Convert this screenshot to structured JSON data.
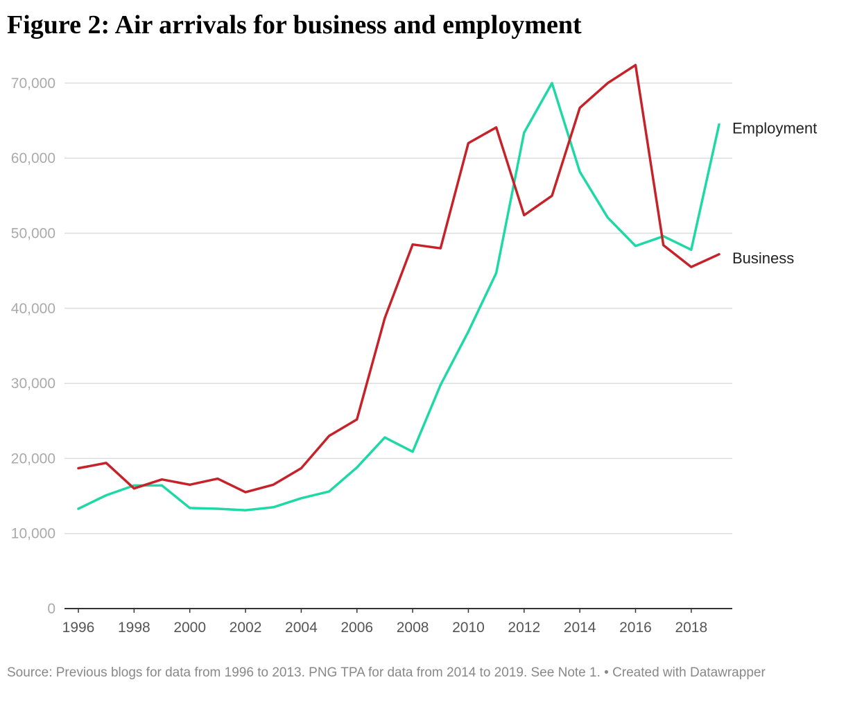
{
  "title": "Figure 2: Air arrivals for business and employment",
  "source_note": "Source: Previous blogs for data from 1996 to 2013. PNG TPA for data from 2014 to 2019. See Note 1. • Created with Datawrapper",
  "chart_data": {
    "type": "line",
    "title": "Figure 2: Air arrivals for business and employment",
    "xlabel": "",
    "ylabel": "",
    "x": [
      1996,
      1997,
      1998,
      1999,
      2000,
      2001,
      2002,
      2003,
      2004,
      2005,
      2006,
      2007,
      2008,
      2009,
      2010,
      2011,
      2012,
      2013,
      2014,
      2015,
      2016,
      2017,
      2018,
      2019
    ],
    "x_ticks": [
      "1996",
      "1998",
      "2000",
      "2002",
      "2004",
      "2006",
      "2008",
      "2010",
      "2012",
      "2014",
      "2016",
      "2018"
    ],
    "y_ticks": [
      "0",
      "10,000",
      "20,000",
      "30,000",
      "40,000",
      "50,000",
      "60,000",
      "70,000"
    ],
    "xlim": [
      1996,
      2019
    ],
    "ylim": [
      0,
      72500
    ],
    "grid": true,
    "legend": "direct labels at line ends",
    "series": [
      {
        "name": "Employment",
        "color": "#1ed8a5",
        "values": [
          13300,
          15100,
          16400,
          16400,
          13400,
          13300,
          13100,
          13500,
          14700,
          15600,
          18800,
          22800,
          20900,
          29800,
          36900,
          44700,
          63400,
          70000,
          58200,
          52100,
          48300,
          49600,
          47800,
          64500
        ]
      },
      {
        "name": "Business",
        "color": "#c5222a",
        "values": [
          18700,
          19400,
          16000,
          17200,
          16500,
          17300,
          15500,
          16500,
          18700,
          23000,
          25200,
          38700,
          48500,
          48000,
          62000,
          64100,
          52400,
          55000,
          66700,
          70000,
          72400,
          48400,
          45500,
          47200
        ]
      }
    ]
  }
}
